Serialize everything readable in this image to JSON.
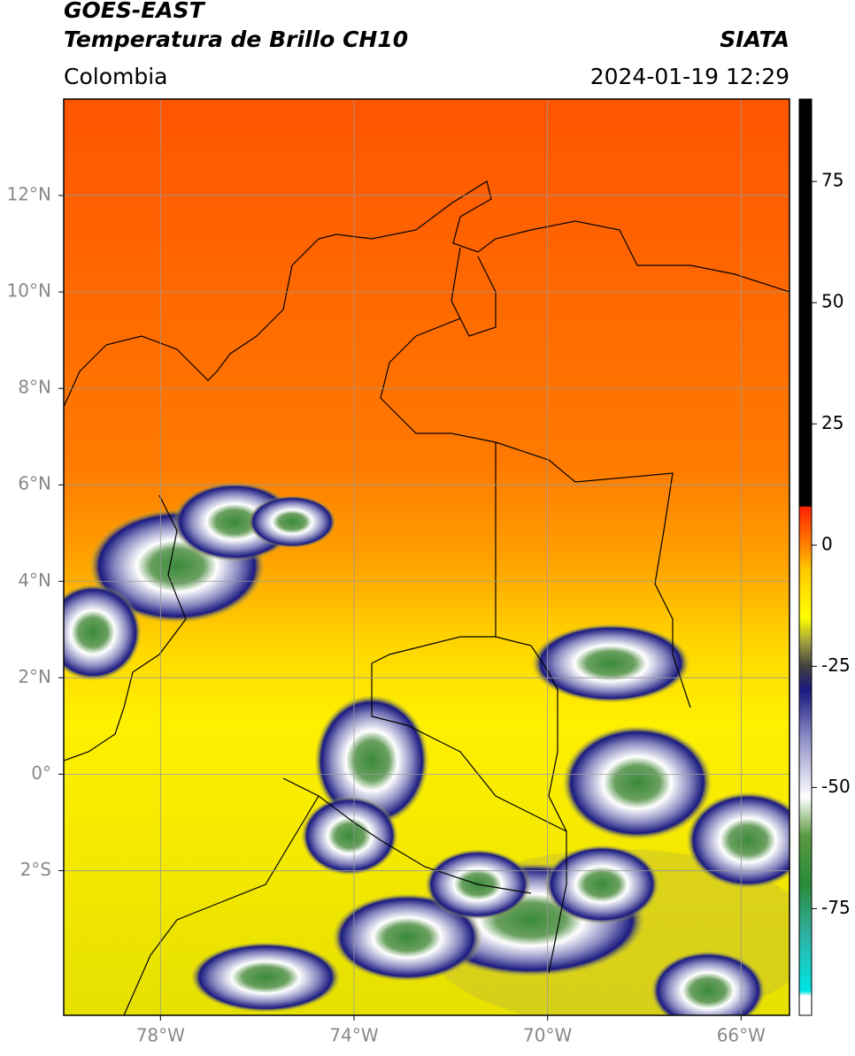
{
  "header": {
    "title": "GOES-EAST",
    "subtitle": "Temperatura de Brillo CH10",
    "region": "Colombia",
    "source": "SIATA",
    "datetime": "2024-01-19 12:29"
  },
  "map": {
    "xlim": [
      -80,
      -65
    ],
    "ylim": [
      -5,
      14
    ],
    "xticks": [
      {
        "value": -78,
        "label": "78°W"
      },
      {
        "value": -74,
        "label": "74°W"
      },
      {
        "value": -70,
        "label": "70°W"
      },
      {
        "value": -66,
        "label": "66°W"
      }
    ],
    "yticks": [
      {
        "value": 12,
        "label": "12°N"
      },
      {
        "value": 10,
        "label": "10°N"
      },
      {
        "value": 8,
        "label": "8°N"
      },
      {
        "value": 6,
        "label": "6°N"
      },
      {
        "value": 4,
        "label": "4°N"
      },
      {
        "value": 2,
        "label": "2°N"
      },
      {
        "value": 0,
        "label": "0°"
      },
      {
        "value": -2,
        "label": "2°S"
      }
    ],
    "grid": true
  },
  "colorbar": {
    "lim": [
      -97,
      92
    ],
    "ticks": [
      75,
      50,
      25,
      0,
      -25,
      -50,
      -75
    ],
    "stops": [
      {
        "value": -97,
        "color": "#ffffff"
      },
      {
        "value": -93,
        "color": "#ffffff"
      },
      {
        "value": -92,
        "color": "#00e5e5"
      },
      {
        "value": -80,
        "color": "#30b0a0"
      },
      {
        "value": -70,
        "color": "#2a8a3a"
      },
      {
        "value": -60,
        "color": "#5a9a40"
      },
      {
        "value": -52,
        "color": "#ffffff"
      },
      {
        "value": -40,
        "color": "#9090c8"
      },
      {
        "value": -30,
        "color": "#1a1a80"
      },
      {
        "value": -25,
        "color": "#404040"
      },
      {
        "value": -20,
        "color": "#a0a040"
      },
      {
        "value": -15,
        "color": "#ffff00"
      },
      {
        "value": -5,
        "color": "#ffc800"
      },
      {
        "value": 0,
        "color": "#ff8000"
      },
      {
        "value": 7.9,
        "color": "#ff2000"
      },
      {
        "value": 8,
        "color": "#000000"
      },
      {
        "value": 92,
        "color": "#000000"
      }
    ]
  }
}
